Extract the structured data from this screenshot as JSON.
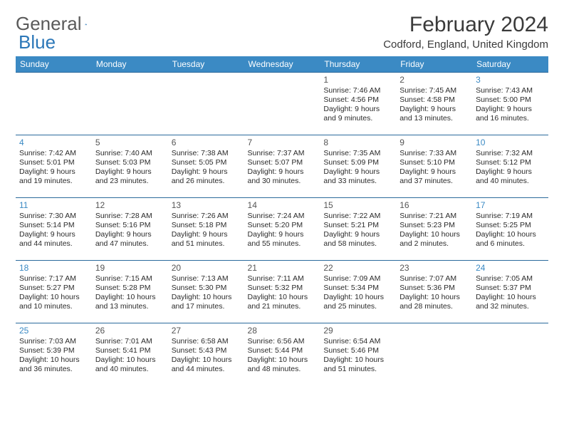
{
  "brand": {
    "part1": "General",
    "part2": "Blue"
  },
  "title": {
    "month": "February 2024",
    "location": "Codford, England, United Kingdom"
  },
  "colors": {
    "headerBg": "#3b8ac4",
    "headerText": "#ffffff",
    "rowBorder": "#2b6a9c",
    "bodyText": "#2b2b2b",
    "weekdayNum": "#555555",
    "weekendNum": "#3b8ac4",
    "brandGray": "#5a5a5a",
    "brandBlue": "#2b77b8"
  },
  "weekdays": [
    "Sunday",
    "Monday",
    "Tuesday",
    "Wednesday",
    "Thursday",
    "Friday",
    "Saturday"
  ],
  "weeks": [
    [
      null,
      null,
      null,
      null,
      {
        "n": "1",
        "sr": "7:46 AM",
        "ss": "4:56 PM",
        "dl": "9 hours and 9 minutes."
      },
      {
        "n": "2",
        "sr": "7:45 AM",
        "ss": "4:58 PM",
        "dl": "9 hours and 13 minutes."
      },
      {
        "n": "3",
        "sr": "7:43 AM",
        "ss": "5:00 PM",
        "dl": "9 hours and 16 minutes."
      }
    ],
    [
      {
        "n": "4",
        "sr": "7:42 AM",
        "ss": "5:01 PM",
        "dl": "9 hours and 19 minutes."
      },
      {
        "n": "5",
        "sr": "7:40 AM",
        "ss": "5:03 PM",
        "dl": "9 hours and 23 minutes."
      },
      {
        "n": "6",
        "sr": "7:38 AM",
        "ss": "5:05 PM",
        "dl": "9 hours and 26 minutes."
      },
      {
        "n": "7",
        "sr": "7:37 AM",
        "ss": "5:07 PM",
        "dl": "9 hours and 30 minutes."
      },
      {
        "n": "8",
        "sr": "7:35 AM",
        "ss": "5:09 PM",
        "dl": "9 hours and 33 minutes."
      },
      {
        "n": "9",
        "sr": "7:33 AM",
        "ss": "5:10 PM",
        "dl": "9 hours and 37 minutes."
      },
      {
        "n": "10",
        "sr": "7:32 AM",
        "ss": "5:12 PM",
        "dl": "9 hours and 40 minutes."
      }
    ],
    [
      {
        "n": "11",
        "sr": "7:30 AM",
        "ss": "5:14 PM",
        "dl": "9 hours and 44 minutes."
      },
      {
        "n": "12",
        "sr": "7:28 AM",
        "ss": "5:16 PM",
        "dl": "9 hours and 47 minutes."
      },
      {
        "n": "13",
        "sr": "7:26 AM",
        "ss": "5:18 PM",
        "dl": "9 hours and 51 minutes."
      },
      {
        "n": "14",
        "sr": "7:24 AM",
        "ss": "5:20 PM",
        "dl": "9 hours and 55 minutes."
      },
      {
        "n": "15",
        "sr": "7:22 AM",
        "ss": "5:21 PM",
        "dl": "9 hours and 58 minutes."
      },
      {
        "n": "16",
        "sr": "7:21 AM",
        "ss": "5:23 PM",
        "dl": "10 hours and 2 minutes."
      },
      {
        "n": "17",
        "sr": "7:19 AM",
        "ss": "5:25 PM",
        "dl": "10 hours and 6 minutes."
      }
    ],
    [
      {
        "n": "18",
        "sr": "7:17 AM",
        "ss": "5:27 PM",
        "dl": "10 hours and 10 minutes."
      },
      {
        "n": "19",
        "sr": "7:15 AM",
        "ss": "5:28 PM",
        "dl": "10 hours and 13 minutes."
      },
      {
        "n": "20",
        "sr": "7:13 AM",
        "ss": "5:30 PM",
        "dl": "10 hours and 17 minutes."
      },
      {
        "n": "21",
        "sr": "7:11 AM",
        "ss": "5:32 PM",
        "dl": "10 hours and 21 minutes."
      },
      {
        "n": "22",
        "sr": "7:09 AM",
        "ss": "5:34 PM",
        "dl": "10 hours and 25 minutes."
      },
      {
        "n": "23",
        "sr": "7:07 AM",
        "ss": "5:36 PM",
        "dl": "10 hours and 28 minutes."
      },
      {
        "n": "24",
        "sr": "7:05 AM",
        "ss": "5:37 PM",
        "dl": "10 hours and 32 minutes."
      }
    ],
    [
      {
        "n": "25",
        "sr": "7:03 AM",
        "ss": "5:39 PM",
        "dl": "10 hours and 36 minutes."
      },
      {
        "n": "26",
        "sr": "7:01 AM",
        "ss": "5:41 PM",
        "dl": "10 hours and 40 minutes."
      },
      {
        "n": "27",
        "sr": "6:58 AM",
        "ss": "5:43 PM",
        "dl": "10 hours and 44 minutes."
      },
      {
        "n": "28",
        "sr": "6:56 AM",
        "ss": "5:44 PM",
        "dl": "10 hours and 48 minutes."
      },
      {
        "n": "29",
        "sr": "6:54 AM",
        "ss": "5:46 PM",
        "dl": "10 hours and 51 minutes."
      },
      null,
      null
    ]
  ],
  "labels": {
    "sunrise": "Sunrise:",
    "sunset": "Sunset:",
    "daylight": "Daylight:"
  }
}
